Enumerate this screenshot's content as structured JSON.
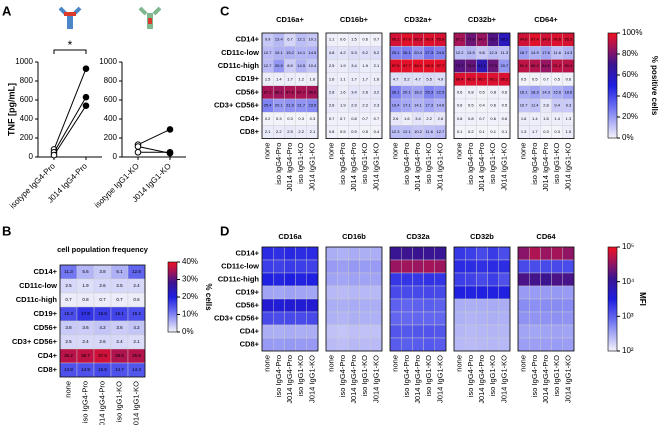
{
  "chart_data": [
    {
      "type": "line",
      "panel": "A",
      "ylabel": "TNF [pg/mL]",
      "annotation": "*",
      "categories": [
        "isotype IgG4-Pro",
        "J014 IgG4-Pro"
      ],
      "series": [
        {
          "values": [
            80,
            930
          ]
        },
        {
          "values": [
            50,
            630
          ]
        },
        {
          "values": [
            20,
            540
          ]
        }
      ],
      "ylim": [
        0,
        1000
      ],
      "yticks": [
        0,
        200,
        400,
        600,
        800,
        1000
      ]
    },
    {
      "type": "line",
      "categories": [
        "isotype IgG1-KO",
        "J014 IgG1-KO"
      ],
      "series": [
        {
          "values": [
            130,
            290
          ]
        },
        {
          "values": [
            110,
            40
          ]
        },
        {
          "values": [
            50,
            50
          ]
        }
      ],
      "ylim": [
        0,
        1000
      ],
      "yticks": [
        0,
        200,
        400,
        600,
        800,
        1000
      ]
    },
    {
      "type": "heatmap",
      "panel": "B",
      "show_values": true,
      "rows": [
        "CD14+",
        "CD11c-low",
        "CD11c-high",
        "CD19+",
        "CD56+",
        "CD3+ CD56+",
        "CD4+",
        "CD8+"
      ],
      "columns": [
        "none",
        "iso IgG4-Pro",
        "J014 IgG4-Pro",
        "iso IgG1-KO",
        "J014 IgG1-KO"
      ],
      "blocks": [
        {
          "title": "cell population frequency",
          "values": [
            [
              11.3,
              5.6,
              3.8,
              6.1,
              12.8
            ],
            [
              2.5,
              1.9,
              2.6,
              2.5,
              2.4
            ],
            [
              0.7,
              0.8,
              0.7,
              0.7,
              0.6
            ],
            [
              15.3,
              17.8,
              16.8,
              16.1,
              15.2
            ],
            [
              3.8,
              3.6,
              4.2,
              3.6,
              4.2
            ],
            [
              2.5,
              2.4,
              2.6,
              2.4,
              2.1
            ],
            [
              36.2,
              36.7,
              37.6,
              35.5,
              35.9
            ],
            [
              14.8,
              14.9,
              15.6,
              14.7,
              14.4
            ]
          ]
        }
      ],
      "zlim": [
        0,
        40
      ],
      "zticks": [
        {
          "value": 0,
          "label": "0%"
        },
        {
          "value": 10,
          "label": "10%"
        },
        {
          "value": 20,
          "label": "20%"
        },
        {
          "value": 30,
          "label": "30%"
        },
        {
          "value": 40,
          "label": "40%"
        }
      ],
      "zlabel": "% cells"
    },
    {
      "type": "heatmap",
      "panel": "C",
      "show_values": true,
      "rows": [
        "CD14+",
        "CD11c-low",
        "CD11c-high",
        "CD19+",
        "CD56+",
        "CD3+ CD56+",
        "CD4+",
        "CD8+"
      ],
      "columns": [
        "none",
        "iso IgG4-Pro",
        "J014 IgG4-Pro",
        "iso IgG1-KO",
        "J014 IgG1-KO"
      ],
      "blocks": [
        {
          "title": "CD16a+",
          "values": [
            [
              9.9,
              13.4,
              6.7,
              12.1,
              10.1
            ],
            [
              12.7,
              15.1,
              15.2,
              14.1,
              14.5
            ],
            [
              12.7,
              20.9,
              8.9,
              14.5,
              10.4
            ],
            [
              1.5,
              1.4,
              1.7,
              1.2,
              1.6
            ],
            [
              87.2,
              86.1,
              87.6,
              87.7,
              86.6
            ],
            [
              25.4,
              20.1,
              21.9,
              21.7,
              23.5
            ],
            [
              0.2,
              0.3,
              0.3,
              0.3,
              0.3
            ],
            [
              2.1,
              2.2,
              2.9,
              2.2,
              2.1
            ]
          ]
        },
        {
          "title": "CD16b+",
          "values": [
            [
              1.1,
              0.6,
              1.5,
              0.6,
              0.7
            ],
            [
              4.8,
              4.2,
              5.3,
              5.2,
              5.2
            ],
            [
              2.5,
              1.9,
              3.4,
              1.9,
              2.1
            ],
            [
              1.6,
              1.1,
              1.7,
              1.7,
              1.6
            ],
            [
              2.8,
              1.6,
              3.4,
              2.6,
              3.2
            ],
            [
              2.6,
              1.9,
              2.9,
              2.2,
              2.3
            ],
            [
              0.7,
              0.7,
              0.8,
              0.7,
              0.7
            ],
            [
              0.8,
              0.5,
              0.9,
              0.5,
              0.4
            ]
          ]
        },
        {
          "title": "CD32a+",
          "values": [
            [
              95.1,
              97.6,
              95.3,
              96.9,
              95.8
            ],
            [
              25.1,
              26.1,
              20.4,
              27.3,
              24.5
            ],
            [
              97.5,
              97.7,
              98.2,
              98.3,
              97.7
            ],
            [
              4.7,
              5.2,
              4.7,
              5.5,
              4.9
            ],
            [
              26.1,
              20.1,
              18.2,
              25.3,
              22.5
            ],
            [
              19.4,
              17.1,
              14.1,
              17.3,
              14.6
            ],
            [
              2.6,
              1.6,
              3.4,
              2.2,
              2.6
            ],
            [
              12.3,
              12.1,
              10.2,
              11.6,
              12.7
            ]
          ]
        },
        {
          "title": "CD32b+",
          "values": [
            [
              87.2,
              77.8,
              84.7,
              73.7,
              58.2
            ],
            [
              12.2,
              13.5,
              9.8,
              12.3,
              11.3
            ],
            [
              74.7,
              76.9,
              61.1,
              77.5,
              20.7
            ],
            [
              96.4,
              96.6,
              96.7,
              96.1,
              96.2
            ],
            [
              0.6,
              0.8,
              0.5,
              0.8,
              0.6
            ],
            [
              0.6,
              0.5,
              0.4,
              0.6,
              0.5
            ],
            [
              0.8,
              0.8,
              0.7,
              0.6,
              0.6
            ],
            [
              0.1,
              0.2,
              0.1,
              0.1,
              0.1
            ]
          ]
        },
        {
          "title": "CD64+",
          "values": [
            [
              94.6,
              97.4,
              94.6,
              96.6,
              95.5
            ],
            [
              18.7,
              14.9,
              17.6,
              11.6,
              14.3
            ],
            [
              91.3,
              89.3,
              84.5,
              91.2,
              90.4
            ],
            [
              0.5,
              0.5,
              0.7,
              0.5,
              0.6
            ],
            [
              16.1,
              18.3,
              14.3,
              15.6,
              18.6
            ],
            [
              10.7,
              11.4,
              2.8,
              9.4,
              9.3
            ],
            [
              1.6,
              1.4,
              1.5,
              1.4,
              1.3
            ],
            [
              1.3,
              1.7,
              0.3,
              0.3,
              1.5
            ]
          ]
        }
      ],
      "zlim": [
        0,
        100
      ],
      "zticks": [
        {
          "value": 0,
          "label": "0%"
        },
        {
          "value": 20,
          "label": "20%"
        },
        {
          "value": 40,
          "label": "40%"
        },
        {
          "value": 60,
          "label": "60%"
        },
        {
          "value": 80,
          "label": "80%"
        },
        {
          "value": 100,
          "label": "100%"
        }
      ],
      "zlabel": "% positive cells"
    },
    {
      "type": "heatmap",
      "panel": "D",
      "show_values": false,
      "log_scale": true,
      "rows": [
        "CD14+",
        "CD11c-low",
        "CD11c-high",
        "CD19+",
        "CD56+",
        "CD3+ CD56+",
        "CD4+",
        "CD8+"
      ],
      "columns": [
        "none",
        "iso IgG4-Pro",
        "J014 IgG4-Pro",
        "iso IgG1-KO",
        "J014 IgG1-KO"
      ],
      "blocks": [
        {
          "title": "CD16a",
          "values": [
            [
              2500,
              2300,
              2600,
              2400,
              2500
            ],
            [
              1800,
              1700,
              1900,
              1800,
              1700
            ],
            [
              3000,
              2800,
              3100,
              2900,
              3000
            ],
            [
              350,
              340,
              360,
              350,
              340
            ],
            [
              4000,
              3800,
              4100,
              3900,
              4000
            ],
            [
              1500,
              1400,
              1500,
              1450,
              1500
            ],
            [
              300,
              290,
              310,
              300,
              300
            ],
            [
              400,
              390,
              410,
              400,
              400
            ]
          ]
        },
        {
          "title": "CD16b",
          "values": [
            [
              300,
              280,
              310,
              290,
              300
            ],
            [
              400,
              380,
              410,
              390,
              400
            ],
            [
              350,
              340,
              360,
              350,
              350
            ],
            [
              250,
              240,
              260,
              250,
              250
            ],
            [
              300,
              290,
              310,
              300,
              300
            ],
            [
              280,
              270,
              290,
              280,
              280
            ],
            [
              220,
              210,
              230,
              220,
              220
            ],
            [
              240,
              230,
              250,
              240,
              240
            ]
          ]
        },
        {
          "title": "CD32a",
          "values": [
            [
              12000,
              13000,
              12500,
              12000,
              11500
            ],
            [
              35000,
              38000,
              36000,
              40000,
              37000
            ],
            [
              2000,
              2100,
              2000,
              2200,
              2100
            ],
            [
              1500,
              1450,
              1500,
              1550,
              1500
            ],
            [
              1000,
              950,
              1000,
              1050,
              1000
            ],
            [
              900,
              880,
              920,
              900,
              900
            ],
            [
              1200,
              1150,
              1200,
              1250,
              1200
            ],
            [
              1100,
              1050,
              1100,
              1150,
              1100
            ]
          ]
        },
        {
          "title": "CD32b",
          "values": [
            [
              2000,
              1800,
              1500,
              1900,
              1400
            ],
            [
              2500,
              2400,
              2300,
              2500,
              2400
            ],
            [
              1800,
              1700,
              1500,
              1800,
              1300
            ],
            [
              3000,
              2900,
              3000,
              2950,
              3000
            ],
            [
              300,
              290,
              300,
              310,
              300
            ],
            [
              280,
              270,
              280,
              290,
              280
            ],
            [
              260,
              250,
              260,
              270,
              260
            ],
            [
              250,
              240,
              250,
              260,
              250
            ]
          ]
        },
        {
          "title": "CD64",
          "values": [
            [
              30000,
              45000,
              35000,
              40000,
              32000
            ],
            [
              1500,
              1400,
              1450,
              1500,
              1400
            ],
            [
              15000,
              14000,
              13000,
              15000,
              14500
            ],
            [
              400,
              390,
              400,
              410,
              400
            ],
            [
              500,
              480,
              500,
              510,
              500
            ],
            [
              450,
              440,
              450,
              460,
              450
            ],
            [
              350,
              340,
              350,
              360,
              350
            ],
            [
              380,
              370,
              380,
              390,
              380
            ]
          ]
        }
      ],
      "zlim": [
        100,
        100000
      ],
      "zticks": [
        {
          "value": 100,
          "label": "10²"
        },
        {
          "value": 1000,
          "label": "10³"
        },
        {
          "value": 10000,
          "label": "10⁴"
        },
        {
          "value": 100000,
          "label": "10⁵"
        }
      ],
      "zlabel": "MFI"
    }
  ]
}
